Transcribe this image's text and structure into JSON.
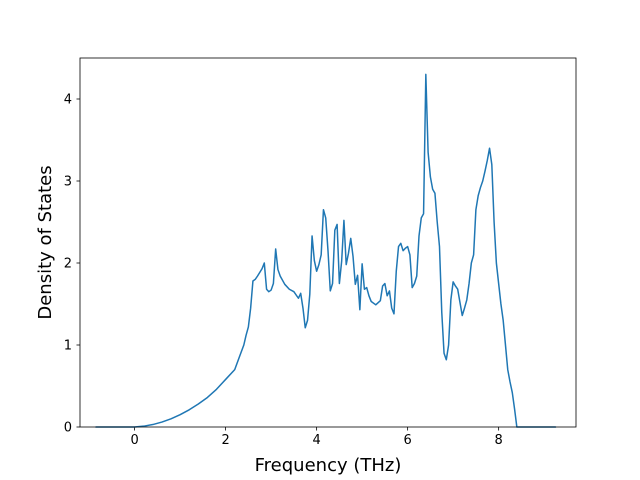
{
  "chart_data": {
    "type": "line",
    "title": "",
    "xlabel": "Frequency (THz)",
    "ylabel": "Density of States",
    "xlim": [
      -1.2,
      9.7
    ],
    "ylim": [
      0,
      4.5
    ],
    "x_ticks": [
      0,
      2,
      4,
      6,
      8
    ],
    "y_ticks": [
      0,
      1,
      2,
      3,
      4
    ],
    "grid": false,
    "legend": "none",
    "colors": {
      "series": "#1f77b4",
      "axes": "#000000",
      "background": "#ffffff"
    },
    "series": [
      {
        "x": [
          -0.85,
          -0.6,
          -0.4,
          -0.2,
          0.0,
          0.2,
          0.4,
          0.6,
          0.8,
          1.0,
          1.2,
          1.4,
          1.6,
          1.8,
          2.0,
          2.2,
          2.3,
          2.4,
          2.45,
          2.5,
          2.55,
          2.6,
          2.65,
          2.7,
          2.8,
          2.85,
          2.9,
          2.95,
          3.0,
          3.05,
          3.1,
          3.15,
          3.2,
          3.3,
          3.4,
          3.5,
          3.6,
          3.65,
          3.7,
          3.75,
          3.8,
          3.85,
          3.9,
          3.95,
          4.0,
          4.05,
          4.1,
          4.15,
          4.2,
          4.25,
          4.3,
          4.35,
          4.4,
          4.45,
          4.5,
          4.55,
          4.6,
          4.65,
          4.7,
          4.75,
          4.8,
          4.85,
          4.9,
          4.95,
          5.0,
          5.05,
          5.1,
          5.15,
          5.2,
          5.3,
          5.4,
          5.45,
          5.5,
          5.55,
          5.6,
          5.65,
          5.7,
          5.75,
          5.8,
          5.85,
          5.9,
          5.95,
          6.0,
          6.05,
          6.1,
          6.15,
          6.2,
          6.25,
          6.3,
          6.35,
          6.4,
          6.45,
          6.5,
          6.55,
          6.6,
          6.65,
          6.7,
          6.75,
          6.8,
          6.85,
          6.9,
          6.95,
          7.0,
          7.05,
          7.1,
          7.15,
          7.2,
          7.25,
          7.3,
          7.35,
          7.4,
          7.45,
          7.5,
          7.55,
          7.6,
          7.65,
          7.7,
          7.75,
          7.8,
          7.85,
          7.9,
          7.95,
          8.0,
          8.05,
          8.1,
          8.15,
          8.2,
          8.25,
          8.3,
          8.35,
          8.4,
          8.45,
          8.6,
          8.8,
          9.0,
          9.25
        ],
        "y": [
          0.0,
          0.0,
          0.0,
          0.0,
          0.0,
          0.01,
          0.03,
          0.06,
          0.1,
          0.15,
          0.21,
          0.28,
          0.36,
          0.46,
          0.58,
          0.7,
          0.85,
          1.0,
          1.12,
          1.22,
          1.45,
          1.78,
          1.8,
          1.84,
          1.93,
          2.0,
          1.68,
          1.65,
          1.67,
          1.75,
          2.17,
          1.92,
          1.84,
          1.74,
          1.68,
          1.65,
          1.57,
          1.63,
          1.45,
          1.21,
          1.3,
          1.62,
          2.33,
          2.03,
          1.9,
          1.98,
          2.1,
          2.65,
          2.55,
          2.15,
          1.66,
          1.75,
          2.4,
          2.47,
          1.75,
          2.02,
          2.52,
          1.98,
          2.12,
          2.3,
          2.08,
          1.74,
          1.85,
          1.43,
          1.99,
          1.68,
          1.7,
          1.6,
          1.53,
          1.49,
          1.54,
          1.72,
          1.75,
          1.6,
          1.66,
          1.45,
          1.38,
          1.9,
          2.2,
          2.24,
          2.15,
          2.18,
          2.2,
          2.1,
          1.7,
          1.75,
          1.84,
          2.33,
          2.55,
          2.6,
          4.3,
          3.35,
          3.05,
          2.9,
          2.85,
          2.5,
          2.2,
          1.4,
          0.9,
          0.82,
          1.0,
          1.55,
          1.77,
          1.72,
          1.68,
          1.52,
          1.36,
          1.45,
          1.55,
          1.75,
          2.0,
          2.1,
          2.65,
          2.82,
          2.92,
          3.0,
          3.12,
          3.25,
          3.4,
          3.2,
          2.5,
          2.0,
          1.75,
          1.5,
          1.3,
          1.0,
          0.7,
          0.55,
          0.42,
          0.22,
          0.0,
          0.0,
          0.0,
          0.0,
          0.0,
          0.0
        ]
      }
    ]
  }
}
